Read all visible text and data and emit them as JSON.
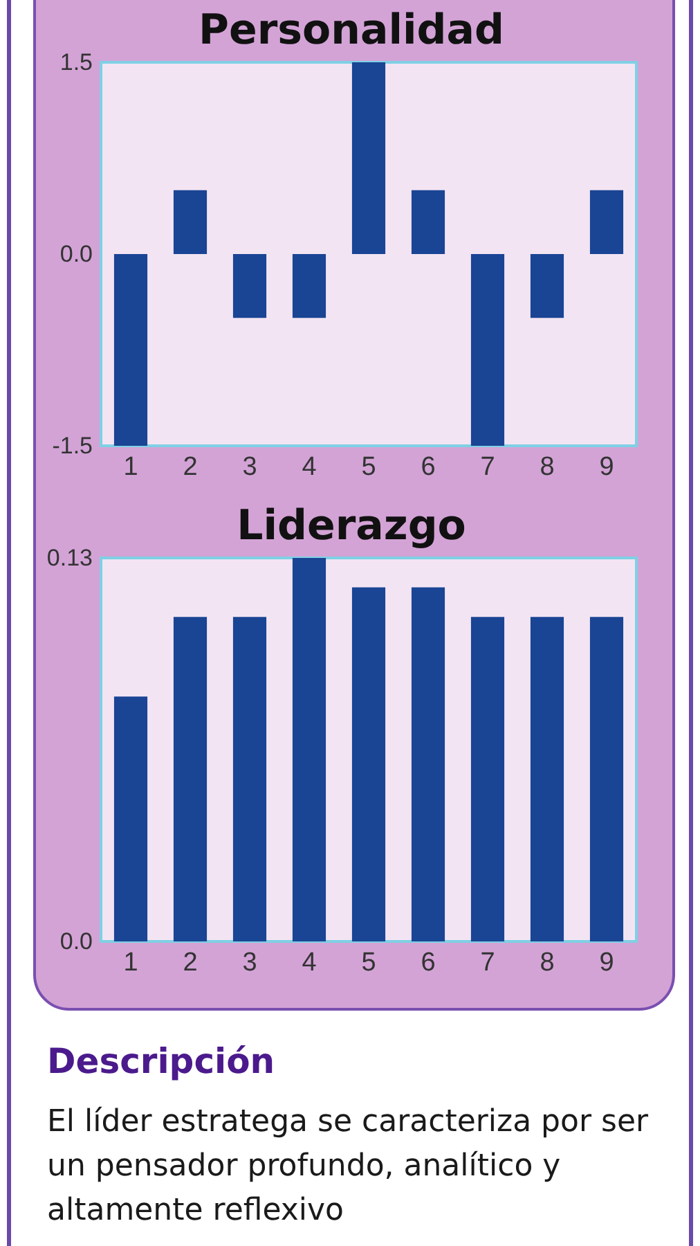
{
  "chart_data": [
    {
      "type": "bar",
      "title": "Personalidad",
      "categories": [
        "1",
        "2",
        "3",
        "4",
        "5",
        "6",
        "7",
        "8",
        "9"
      ],
      "values": [
        -1.5,
        0.5,
        -0.5,
        -0.5,
        1.5,
        0.5,
        -1.5,
        -0.5,
        0.5
      ],
      "color": "#1a4494",
      "ylim": [
        -1.5,
        1.5
      ],
      "yticks": [
        -1.5,
        {
          "value": 0,
          "label": "0.0"
        },
        1.5
      ],
      "grid": false
    },
    {
      "type": "bar",
      "title": "Liderazgo",
      "categories": [
        "1",
        "2",
        "3",
        "4",
        "5",
        "6",
        "7",
        "8",
        "9"
      ],
      "values": [
        0.083,
        0.11,
        0.11,
        0.13,
        0.12,
        0.12,
        0.11,
        0.11,
        0.11
      ],
      "color": "#1a4494",
      "ylim": [
        0,
        0.13
      ],
      "yticks": [
        {
          "value": 0,
          "label": "0.0"
        },
        0.13
      ],
      "grid": false,
      "annotations": [
        "Descripción",
        "El líder estratega se caracteriza por ser un pensador profundo, analítico y altamente reflexivo"
      ]
    }
  ]
}
